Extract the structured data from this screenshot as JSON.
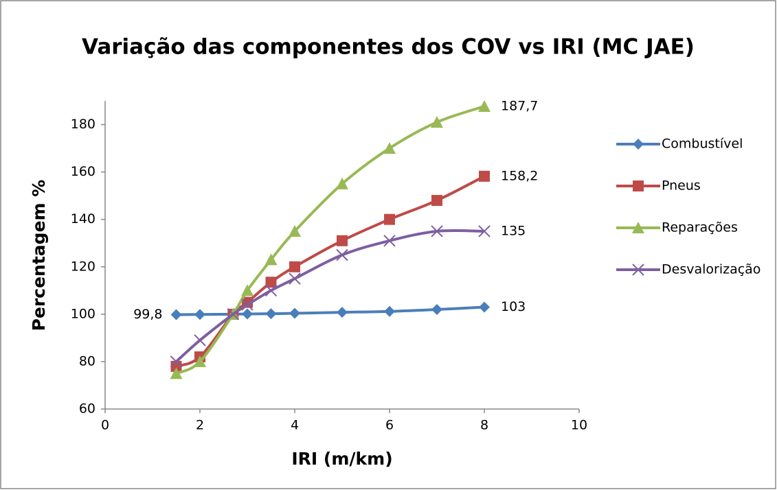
{
  "chart_data": {
    "type": "line",
    "title": "Variação das componentes dos COV vs IRI (MC JAE)",
    "x_label": "IRI (m/km)",
    "y_label": "Percentagem %",
    "x": [
      1.5,
      2,
      2.7,
      3,
      3.5,
      4,
      5,
      6,
      7,
      8
    ],
    "series": [
      {
        "name": "Combustível",
        "color": "#4a7ebb",
        "marker": "diamond",
        "values": [
          99.8,
          99.9,
          100,
          100.1,
          100.2,
          100.4,
          100.8,
          101.2,
          102,
          103
        ],
        "value_labels": [
          "99,8",
          null,
          null,
          null,
          null,
          null,
          null,
          null,
          null,
          "103"
        ]
      },
      {
        "name": "Pneus",
        "color": "#be4b48",
        "marker": "square",
        "values": [
          78,
          82,
          100,
          105,
          113.5,
          120,
          131,
          140,
          148,
          158.2
        ],
        "value_labels": [
          null,
          null,
          null,
          null,
          null,
          null,
          null,
          null,
          null,
          "158,2"
        ]
      },
      {
        "name": "Reparações",
        "color": "#98b954",
        "marker": "triangle",
        "values": [
          75,
          80,
          100,
          110,
          123,
          135,
          155,
          170,
          181,
          187.7
        ],
        "value_labels": [
          null,
          null,
          null,
          null,
          null,
          null,
          null,
          null,
          null,
          "187,7"
        ]
      },
      {
        "name": "Desvalorização",
        "color": "#7d5fa0",
        "marker": "x",
        "values": [
          80,
          89,
          100,
          104,
          110,
          115,
          125,
          131,
          135,
          135
        ],
        "value_labels": [
          null,
          null,
          null,
          null,
          null,
          null,
          null,
          null,
          null,
          "135"
        ]
      }
    ],
    "xlim": [
      0,
      10
    ],
    "xticks": [
      0,
      2,
      4,
      6,
      8,
      10
    ],
    "ylim": [
      60,
      190
    ],
    "yticks": [
      60,
      80,
      100,
      120,
      140,
      160,
      180
    ],
    "grid": false,
    "legend": "right"
  }
}
